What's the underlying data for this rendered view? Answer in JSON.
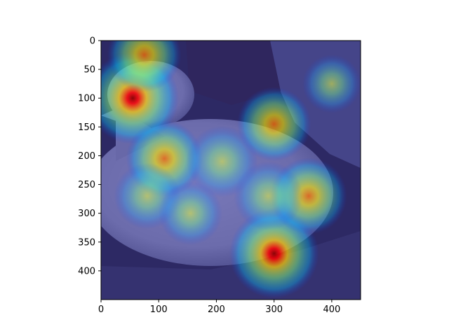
{
  "chart_data": {
    "type": "heatmap",
    "title": "",
    "xlabel": "",
    "ylabel": "",
    "xlim": [
      0,
      450
    ],
    "ylim": [
      450,
      0
    ],
    "x_ticks": [
      0,
      100,
      200,
      300,
      400
    ],
    "y_ticks": [
      0,
      50,
      100,
      150,
      200,
      250,
      300,
      350,
      400
    ],
    "colormap": "jet",
    "background_image": "bird-photo",
    "hotspots": [
      {
        "x": 55,
        "y": 100,
        "intensity": 1.0
      },
      {
        "x": 75,
        "y": 25,
        "intensity": 0.65
      },
      {
        "x": 300,
        "y": 370,
        "intensity": 0.95
      },
      {
        "x": 360,
        "y": 270,
        "intensity": 0.7
      },
      {
        "x": 300,
        "y": 145,
        "intensity": 0.65
      },
      {
        "x": 110,
        "y": 205,
        "intensity": 0.7
      },
      {
        "x": 210,
        "y": 210,
        "intensity": 0.6
      },
      {
        "x": 290,
        "y": 270,
        "intensity": 0.55
      },
      {
        "x": 80,
        "y": 270,
        "intensity": 0.5
      },
      {
        "x": 155,
        "y": 300,
        "intensity": 0.45
      },
      {
        "x": 400,
        "y": 75,
        "intensity": 0.35
      }
    ]
  }
}
